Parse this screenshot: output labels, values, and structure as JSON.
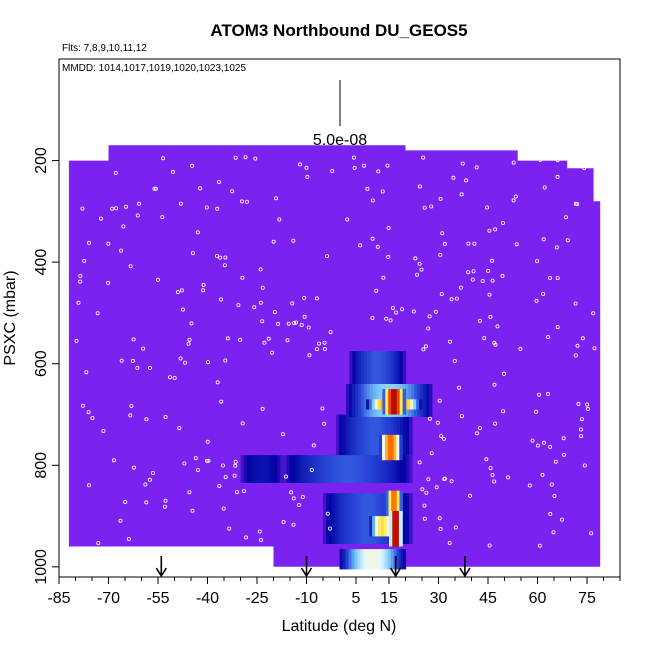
{
  "chart_data": {
    "type": "heatmap",
    "title": "ATOM3 Northbound DU_GEOS5",
    "flights_note": "Flts: 7,8,9,10,11,12",
    "dates_note": "MMDD: 1014,1017,1019,1020,1023,1025",
    "xlabel": "Latitude (deg N)",
    "ylabel": "PSXC (mbar)",
    "x_ticks": [
      -85,
      -70,
      -55,
      -40,
      -25,
      -10,
      5,
      15,
      30,
      45,
      60,
      75
    ],
    "y_ticks": [
      200,
      400,
      600,
      800,
      1000
    ],
    "xlim": [
      -85,
      85
    ],
    "ylim": [
      1020,
      0
    ],
    "scale_label": "5.0e-08",
    "arrow_latitudes": [
      -54,
      -10,
      17,
      38
    ],
    "background_color": "#7b22f0",
    "domain_outline": [
      [
        -70,
        170
      ],
      [
        20,
        170
      ],
      [
        20,
        180
      ],
      [
        54,
        180
      ],
      [
        54,
        200
      ],
      [
        69,
        200
      ],
      [
        69,
        215
      ],
      [
        77,
        215
      ],
      [
        77,
        280
      ],
      [
        79,
        280
      ],
      [
        79,
        1000
      ],
      [
        -20,
        1000
      ],
      [
        -20,
        960
      ],
      [
        -82,
        960
      ],
      [
        -82,
        200
      ],
      [
        -70,
        200
      ]
    ],
    "plumes": [
      {
        "lat0": 0,
        "lat1": 20,
        "p0": 965,
        "p1": 1005,
        "level": 0.55
      },
      {
        "lat0": -5,
        "lat1": 22,
        "p0": 855,
        "p1": 955,
        "level": 0.3
      },
      {
        "lat0": -17,
        "lat1": 22,
        "p0": 780,
        "p1": 835,
        "level": 0.3
      },
      {
        "lat0": -30,
        "lat1": -17,
        "p0": 780,
        "p1": 835,
        "level": 0.15
      },
      {
        "lat0": -1,
        "lat1": 22,
        "p0": 700,
        "p1": 780,
        "level": 0.3
      },
      {
        "lat0": 2,
        "lat1": 28,
        "p0": 640,
        "p1": 705,
        "level": 0.45
      },
      {
        "lat0": 3,
        "lat1": 20,
        "p0": 575,
        "p1": 640,
        "level": 0.3
      },
      {
        "lat0": 8,
        "lat1": 25,
        "p0": 670,
        "p1": 690,
        "level": 0.85
      },
      {
        "lat0": 13,
        "lat1": 20,
        "p0": 650,
        "p1": 700,
        "level": 0.95
      },
      {
        "lat0": 12,
        "lat1": 19,
        "p0": 740,
        "p1": 790,
        "level": 0.8
      },
      {
        "lat0": 14,
        "lat1": 19,
        "p0": 850,
        "p1": 900,
        "level": 0.8
      },
      {
        "lat0": 9,
        "lat1": 17,
        "p0": 900,
        "p1": 940,
        "level": 0.65
      },
      {
        "lat0": 15,
        "lat1": 19,
        "p0": 890,
        "p1": 960,
        "level": 0.98
      }
    ]
  }
}
